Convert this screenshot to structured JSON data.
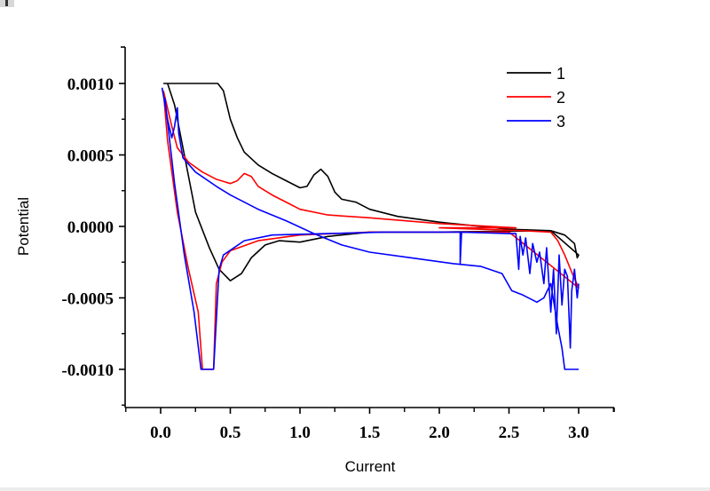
{
  "chart_data": {
    "type": "line",
    "title": "",
    "xlabel": "Current",
    "ylabel": "Potential",
    "xlim": [
      -0.25,
      3.25
    ],
    "ylim": [
      -0.00125,
      0.00125
    ],
    "xticks": [
      "0.0",
      "0.5",
      "1.0",
      "1.5",
      "2.0",
      "2.5",
      "3.0"
    ],
    "xtick_values": [
      0.0,
      0.5,
      1.0,
      1.5,
      2.0,
      2.5,
      3.0
    ],
    "yticks": [
      "0.0010",
      "0.0005",
      "0.0000",
      "-0.0005",
      "-0.0010"
    ],
    "ytick_values": [
      0.001,
      0.0005,
      0.0,
      -0.0005,
      -0.001
    ],
    "grid": false,
    "legend_position": "top-right",
    "series": [
      {
        "name": "1",
        "color": "#000000",
        "points": [
          [
            0.02,
            0.001
          ],
          [
            0.41,
            0.001
          ],
          [
            0.45,
            0.00095
          ],
          [
            0.5,
            0.00075
          ],
          [
            0.55,
            0.00062
          ],
          [
            0.6,
            0.00052
          ],
          [
            0.7,
            0.00043
          ],
          [
            0.8,
            0.00037
          ],
          [
            0.9,
            0.00032
          ],
          [
            1.0,
            0.00027
          ],
          [
            1.05,
            0.00028
          ],
          [
            1.1,
            0.00036
          ],
          [
            1.15,
            0.0004
          ],
          [
            1.2,
            0.00035
          ],
          [
            1.25,
            0.00024
          ],
          [
            1.3,
            0.00019
          ],
          [
            1.4,
            0.00017
          ],
          [
            1.5,
            0.00012
          ],
          [
            1.7,
            7e-05
          ],
          [
            2.0,
            3e-05
          ],
          [
            2.5,
            -2e-05
          ],
          [
            2.8,
            -3e-05
          ],
          [
            2.9,
            -6e-05
          ],
          [
            2.97,
            -0.00012
          ],
          [
            2.99,
            -0.00022
          ],
          [
            3.0,
            -0.0002
          ],
          [
            2.8,
            -3e-05
          ],
          [
            2.0,
            -4e-05
          ],
          [
            1.5,
            -4e-05
          ],
          [
            1.2,
            -7e-05
          ],
          [
            1.0,
            -0.00011
          ],
          [
            0.85,
            -0.0001
          ],
          [
            0.75,
            -0.00013
          ],
          [
            0.65,
            -0.00022
          ],
          [
            0.58,
            -0.00033
          ],
          [
            0.5,
            -0.00038
          ],
          [
            0.42,
            -0.0003
          ],
          [
            0.35,
            -0.00015
          ],
          [
            0.25,
            0.0001
          ],
          [
            0.18,
            0.00045
          ],
          [
            0.1,
            0.00085
          ],
          [
            0.05,
            0.001
          ]
        ]
      },
      {
        "name": "2",
        "color": "#ff0000",
        "points": [
          [
            0.02,
            0.00095
          ],
          [
            0.08,
            0.0007
          ],
          [
            0.12,
            0.00055
          ],
          [
            0.2,
            0.00045
          ],
          [
            0.3,
            0.00038
          ],
          [
            0.4,
            0.00033
          ],
          [
            0.5,
            0.0003
          ],
          [
            0.55,
            0.00032
          ],
          [
            0.6,
            0.00037
          ],
          [
            0.65,
            0.00035
          ],
          [
            0.7,
            0.00028
          ],
          [
            0.8,
            0.00022
          ],
          [
            0.9,
            0.00017
          ],
          [
            1.0,
            0.00012
          ],
          [
            1.2,
            8e-05
          ],
          [
            1.5,
            6e-05
          ],
          [
            2.0,
            2e-05
          ],
          [
            2.55,
            -1e-05
          ],
          [
            2.0,
            -1e-05
          ],
          [
            2.6,
            -3e-05
          ],
          [
            2.8,
            -4e-05
          ],
          [
            2.85,
            -0.0001
          ],
          [
            2.9,
            -0.0002
          ],
          [
            2.95,
            -0.00032
          ],
          [
            3.0,
            -0.00043
          ],
          [
            2.5,
            -4e-05
          ],
          [
            1.5,
            -4e-05
          ],
          [
            1.0,
            -6e-05
          ],
          [
            0.7,
            -0.0001
          ],
          [
            0.5,
            -0.00017
          ],
          [
            0.44,
            -0.00025
          ],
          [
            0.4,
            -0.0004
          ],
          [
            0.38,
            -0.001
          ],
          [
            0.3,
            -0.001
          ],
          [
            0.27,
            -0.0006
          ],
          [
            0.2,
            -0.0003
          ],
          [
            0.12,
            0.0001
          ],
          [
            0.05,
            0.0006
          ],
          [
            0.02,
            0.00095
          ]
        ]
      },
      {
        "name": "3",
        "color": "#0000ff",
        "points": [
          [
            0.01,
            0.00097
          ],
          [
            0.05,
            0.00075
          ],
          [
            0.08,
            0.00062
          ],
          [
            0.1,
            0.0007
          ],
          [
            0.12,
            0.00083
          ],
          [
            0.13,
            0.00065
          ],
          [
            0.16,
            0.00048
          ],
          [
            0.25,
            0.00038
          ],
          [
            0.4,
            0.00028
          ],
          [
            0.5,
            0.00022
          ],
          [
            0.7,
            0.00012
          ],
          [
            0.9,
            4e-05
          ],
          [
            1.1,
            -5e-05
          ],
          [
            1.3,
            -0.00013
          ],
          [
            1.5,
            -0.00018
          ],
          [
            1.8,
            -0.00022
          ],
          [
            2.1,
            -0.00026
          ],
          [
            2.3,
            -0.00028
          ],
          [
            2.45,
            -0.00033
          ],
          [
            2.52,
            -0.00045
          ],
          [
            2.6,
            -0.00048
          ],
          [
            2.7,
            -0.00053
          ],
          [
            2.75,
            -0.0005
          ],
          [
            2.8,
            -0.0004
          ],
          [
            2.85,
            -0.0007
          ],
          [
            2.88,
            -0.00085
          ],
          [
            2.9,
            -0.001
          ],
          [
            3.0,
            -0.001
          ]
        ],
        "return_points": [
          [
            0.38,
            -0.001
          ],
          [
            0.29,
            -0.001
          ],
          [
            0.24,
            -0.0006
          ],
          [
            0.17,
            -0.0002
          ],
          [
            0.1,
            0.0003
          ],
          [
            0.03,
            0.0009
          ]
        ],
        "noisy_points": [
          [
            0.38,
            -0.001
          ],
          [
            0.42,
            -0.0003
          ],
          [
            0.45,
            -0.0002
          ],
          [
            0.6,
            -0.0001
          ],
          [
            0.8,
            -6e-05
          ],
          [
            1.2,
            -5e-05
          ],
          [
            1.6,
            -4e-05
          ],
          [
            2.15,
            -4e-05
          ],
          [
            2.15,
            -0.00026
          ],
          [
            2.16,
            -4e-05
          ],
          [
            2.5,
            -5e-05
          ],
          [
            2.55,
            -5e-05
          ],
          [
            2.57,
            -0.0003
          ],
          [
            2.58,
            -7e-05
          ],
          [
            2.6,
            -0.0002
          ],
          [
            2.62,
            -8e-05
          ],
          [
            2.65,
            -0.00033
          ],
          [
            2.67,
            -0.00012
          ],
          [
            2.7,
            -0.00025
          ],
          [
            2.72,
            -0.00018
          ],
          [
            2.75,
            -0.0004
          ],
          [
            2.77,
            -0.00015
          ],
          [
            2.8,
            -0.0006
          ],
          [
            2.82,
            -0.0003
          ],
          [
            2.84,
            -0.00075
          ],
          [
            2.86,
            -0.0002
          ],
          [
            2.88,
            -0.00055
          ],
          [
            2.9,
            -0.0003
          ],
          [
            2.92,
            -0.00035
          ],
          [
            2.94,
            -0.00085
          ],
          [
            2.95,
            -0.00045
          ],
          [
            2.97,
            -0.0003
          ],
          [
            2.99,
            -0.0005
          ],
          [
            3.0,
            -0.0004
          ]
        ]
      }
    ]
  }
}
